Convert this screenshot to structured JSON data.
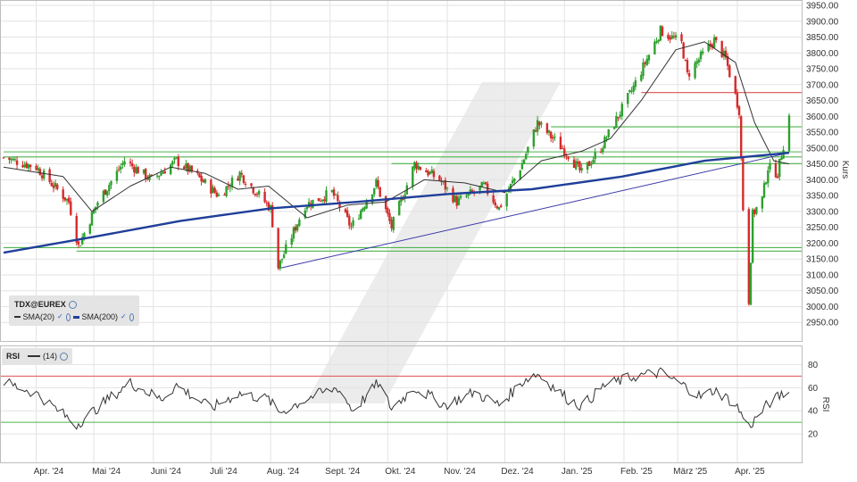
{
  "chart_data": [
    {
      "type": "candlestick",
      "name": "TDX@EUREX",
      "x_axis": {
        "labels": [
          "Apr. '24",
          "Mai '24",
          "Juni '24",
          "Juli '24",
          "Aug. '24",
          "Sept. '24",
          "Okt. '24",
          "Nov. '24",
          "Dez. '24",
          "Jan. '25",
          "Feb. '25",
          "März '25",
          "Apr. '25"
        ],
        "start": "2024-03-15",
        "end": "2025-04-28"
      },
      "y_axis": {
        "label": "Kurs",
        "range": [
          2900,
          3950
        ],
        "ticks": [
          2950,
          3000,
          3050,
          3100,
          3150,
          3200,
          3250,
          3300,
          3350,
          3400,
          3450,
          3500,
          3550,
          3600,
          3650,
          3700,
          3750,
          3800,
          3850,
          3900,
          3950
        ],
        "tick_format": "2 decimals"
      },
      "grid": true,
      "legend": {
        "title": "TDX@EUREX",
        "entries": [
          {
            "label": "SMA(20)",
            "color": "#333333"
          },
          {
            "label": "SMA(200)",
            "color": "#1f3f99"
          }
        ]
      },
      "price_path": [
        [
          "2024-03-15",
          3470
        ],
        [
          "2024-04-01",
          3440
        ],
        [
          "2024-04-18",
          3330
        ],
        [
          "2024-04-23",
          3190
        ],
        [
          "2024-05-03",
          3330
        ],
        [
          "2024-05-17",
          3460
        ],
        [
          "2024-05-31",
          3400
        ],
        [
          "2024-06-13",
          3460
        ],
        [
          "2024-06-24",
          3410
        ],
        [
          "2024-07-05",
          3350
        ],
        [
          "2024-07-16",
          3420
        ],
        [
          "2024-08-01",
          3310
        ],
        [
          "2024-08-05",
          3125
        ],
        [
          "2024-08-19",
          3320
        ],
        [
          "2024-09-02",
          3360
        ],
        [
          "2024-09-12",
          3250
        ],
        [
          "2024-09-25",
          3390
        ],
        [
          "2024-10-03",
          3250
        ],
        [
          "2024-10-15",
          3450
        ],
        [
          "2024-10-28",
          3400
        ],
        [
          "2024-11-06",
          3330
        ],
        [
          "2024-11-20",
          3380
        ],
        [
          "2024-11-28",
          3310
        ],
        [
          "2024-12-10",
          3450
        ],
        [
          "2024-12-18",
          3580
        ],
        [
          "2025-01-03",
          3480
        ],
        [
          "2025-01-10",
          3420
        ],
        [
          "2025-01-20",
          3500
        ],
        [
          "2025-02-05",
          3680
        ],
        [
          "2025-02-20",
          3870
        ],
        [
          "2025-03-03",
          3830
        ],
        [
          "2025-03-06",
          3730
        ],
        [
          "2025-03-12",
          3780
        ],
        [
          "2025-03-20",
          3840
        ],
        [
          "2025-03-26",
          3780
        ],
        [
          "2025-04-02",
          3620
        ],
        [
          "2025-04-04",
          3310
        ],
        [
          "2025-04-07",
          3020
        ],
        [
          "2025-04-09",
          3290
        ],
        [
          "2025-04-14",
          3340
        ],
        [
          "2025-04-17",
          3440
        ],
        [
          "2025-04-22",
          3420
        ],
        [
          "2025-04-28",
          3600
        ]
      ],
      "sma20_path": [
        [
          "2024-03-15",
          3440
        ],
        [
          "2024-04-15",
          3410
        ],
        [
          "2024-04-30",
          3300
        ],
        [
          "2024-05-20",
          3380
        ],
        [
          "2024-06-10",
          3440
        ],
        [
          "2024-06-28",
          3420
        ],
        [
          "2024-07-15",
          3370
        ],
        [
          "2024-07-31",
          3380
        ],
        [
          "2024-08-20",
          3280
        ],
        [
          "2024-09-10",
          3320
        ],
        [
          "2024-09-30",
          3330
        ],
        [
          "2024-10-20",
          3400
        ],
        [
          "2024-11-10",
          3390
        ],
        [
          "2024-12-01",
          3360
        ],
        [
          "2024-12-20",
          3460
        ],
        [
          "2025-01-10",
          3490
        ],
        [
          "2025-01-25",
          3530
        ],
        [
          "2025-02-10",
          3650
        ],
        [
          "2025-02-28",
          3810
        ],
        [
          "2025-03-15",
          3835
        ],
        [
          "2025-03-31",
          3770
        ],
        [
          "2025-04-10",
          3580
        ],
        [
          "2025-04-20",
          3460
        ],
        [
          "2025-04-28",
          3450
        ]
      ],
      "sma200_path": [
        [
          "2024-03-15",
          3170
        ],
        [
          "2024-05-01",
          3220
        ],
        [
          "2024-06-15",
          3270
        ],
        [
          "2024-08-01",
          3310
        ],
        [
          "2024-09-15",
          3330
        ],
        [
          "2024-11-01",
          3355
        ],
        [
          "2024-12-15",
          3370
        ],
        [
          "2025-01-31",
          3410
        ],
        [
          "2025-03-15",
          3460
        ],
        [
          "2025-04-28",
          3485
        ]
      ],
      "horizontal_lines": [
        {
          "value": 3675,
          "color": "#e05050",
          "from": "2025-02-10"
        },
        {
          "value": 3567,
          "color": "#4db34d",
          "from": "2024-12-25"
        },
        {
          "value": 3488,
          "color": "#4db34d",
          "from": "2024-03-15"
        },
        {
          "value": 3472,
          "color": "#4db34d",
          "from": "2024-03-15"
        },
        {
          "value": 3451,
          "color": "#4db34d",
          "from": "2024-10-03"
        },
        {
          "value": 3186,
          "color": "#4db34d",
          "from": "2024-03-15"
        },
        {
          "value": 3175,
          "color": "#4db34d",
          "from": "2024-04-22"
        }
      ],
      "trend_lines": [
        {
          "from": [
            "2024-08-05",
            3120
          ],
          "to": [
            "2025-04-28",
            3485
          ],
          "color": "#3a3aa8"
        }
      ]
    },
    {
      "type": "line",
      "name": "RSI",
      "legend": {
        "title": "RSI",
        "entries": [
          {
            "label": "(14)",
            "color": "#333333"
          }
        ]
      },
      "y_axis": {
        "label": "RSI",
        "ticks": [
          20,
          40,
          60,
          80
        ],
        "range": [
          0,
          95
        ]
      },
      "reference_lines": [
        {
          "value": 70,
          "color": "#e05050"
        },
        {
          "value": 30,
          "color": "#4db34d"
        }
      ],
      "series_path": [
        [
          "2024-03-15",
          65
        ],
        [
          "2024-04-01",
          55
        ],
        [
          "2024-04-22",
          28
        ],
        [
          "2024-05-10",
          52
        ],
        [
          "2024-05-20",
          64
        ],
        [
          "2024-06-05",
          50
        ],
        [
          "2024-06-13",
          62
        ],
        [
          "2024-07-01",
          42
        ],
        [
          "2024-07-15",
          55
        ],
        [
          "2024-07-31",
          50
        ],
        [
          "2024-08-05",
          38
        ],
        [
          "2024-08-22",
          52
        ],
        [
          "2024-09-05",
          60
        ],
        [
          "2024-09-13",
          40
        ],
        [
          "2024-09-26",
          64
        ],
        [
          "2024-10-03",
          42
        ],
        [
          "2024-10-15",
          60
        ],
        [
          "2024-10-31",
          45
        ],
        [
          "2024-11-15",
          56
        ],
        [
          "2024-11-28",
          45
        ],
        [
          "2024-12-12",
          68
        ],
        [
          "2024-12-18",
          72
        ],
        [
          "2025-01-03",
          50
        ],
        [
          "2025-01-10",
          44
        ],
        [
          "2025-01-22",
          62
        ],
        [
          "2025-02-07",
          70
        ],
        [
          "2025-02-20",
          73
        ],
        [
          "2025-03-06",
          60
        ],
        [
          "2025-03-13",
          52
        ],
        [
          "2025-03-20",
          58
        ],
        [
          "2025-03-31",
          46
        ],
        [
          "2025-04-07",
          26
        ],
        [
          "2025-04-17",
          46
        ],
        [
          "2025-04-25",
          55
        ]
      ]
    }
  ]
}
